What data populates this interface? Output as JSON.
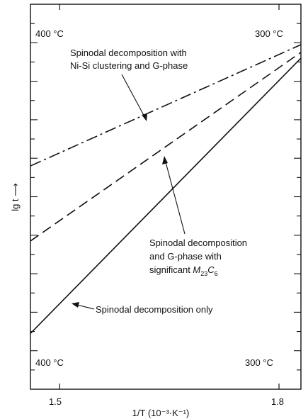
{
  "chart_data": {
    "type": "line",
    "title": "",
    "xlabel": "1/T (10⁻³·K⁻¹)",
    "ylabel": "lg t ⟶",
    "xlim": [
      1.46,
      1.83
    ],
    "ylim": [
      0,
      1
    ],
    "x_ticks": [
      1.5,
      1.8
    ],
    "x_tick_labels": [
      "1.5",
      "1.8"
    ],
    "temp_labels": {
      "top_left": "400 °C",
      "top_right": "300 °C",
      "bottom_left": "400 °C",
      "bottom_right": "300 °C"
    },
    "series": [
      {
        "name": "Spinodal decomposition with Ni-Si clustering and G-phase",
        "style": "dash-dot",
        "x": [
          1.46,
          1.83
        ],
        "y": [
          0.58,
          0.895
        ]
      },
      {
        "name": "Spinodal decomposition and G-phase with significant M23C6",
        "style": "dashed",
        "x": [
          1.46,
          1.83
        ],
        "y": [
          0.385,
          0.875
        ]
      },
      {
        "name": "Spinodal decomposition only",
        "style": "solid",
        "x": [
          1.46,
          1.83
        ],
        "y": [
          0.145,
          0.86
        ]
      }
    ],
    "annotations": [
      {
        "line1": "Spinodal decomposition with",
        "line2": "Ni-Si clustering and G-phase"
      },
      {
        "line1": "Spinodal decomposition",
        "line2": "and G-phase with",
        "line3_prefix": "significant ",
        "line3_m": "M",
        "line3_sub1": "23",
        "line3_c": "C",
        "line3_sub2": "6"
      },
      {
        "line1": "Spinodal decomposition only"
      }
    ],
    "grid": false,
    "legend": "none"
  }
}
